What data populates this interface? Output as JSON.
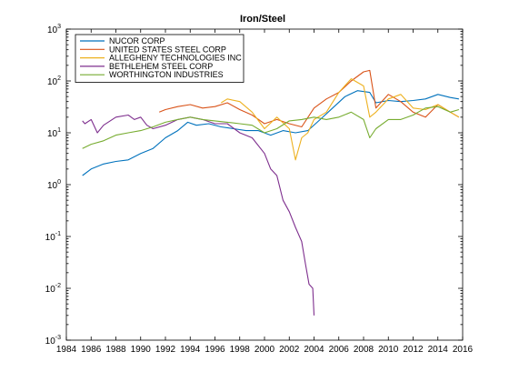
{
  "chart_data": {
    "type": "line",
    "title": "Iron/Steel",
    "xlabel": "",
    "ylabel": "",
    "xlim": [
      1984,
      2016
    ],
    "ylim": [
      0.001,
      1000
    ],
    "yscale": "log",
    "grid": false,
    "legend_position": "top-left",
    "x_ticks": [
      1984,
      1986,
      1988,
      1990,
      1992,
      1994,
      1996,
      1998,
      2000,
      2002,
      2004,
      2006,
      2008,
      2010,
      2012,
      2014,
      2016
    ],
    "y_ticks": [
      {
        "value": 0.001,
        "base": "10",
        "exp": "-3"
      },
      {
        "value": 0.01,
        "base": "10",
        "exp": "-2"
      },
      {
        "value": 0.1,
        "base": "10",
        "exp": "-1"
      },
      {
        "value": 1,
        "base": "10",
        "exp": "0"
      },
      {
        "value": 10,
        "base": "10",
        "exp": "1"
      },
      {
        "value": 100,
        "base": "10",
        "exp": "2"
      },
      {
        "value": 1000,
        "base": "10",
        "exp": "3"
      }
    ],
    "series": [
      {
        "name": "NUCOR CORP",
        "color": "#0072bd",
        "x": [
          1985.3,
          1986.0,
          1987.0,
          1988.0,
          1989.0,
          1990.0,
          1991.0,
          1992.0,
          1993.0,
          1993.8,
          1994.5,
          1995.5,
          1996.5,
          1997.5,
          1998.5,
          1999.5,
          2000.5,
          2001.5,
          2002.5,
          2003.5,
          2004.5,
          2005.5,
          2006.5,
          2007.5,
          2008.5,
          2009.0,
          2010.0,
          2011.0,
          2012.0,
          2013.0,
          2014.0,
          2015.0,
          2015.7
        ],
        "y": [
          1.5,
          2.0,
          2.5,
          2.8,
          3.0,
          4.0,
          5.0,
          8.0,
          11.0,
          16.0,
          14.0,
          15.0,
          13.0,
          12.0,
          11.0,
          11.0,
          9.0,
          11.0,
          10.0,
          11.0,
          18.0,
          30.0,
          50.0,
          65.0,
          60.0,
          38.0,
          42.0,
          40.0,
          42.0,
          45.0,
          55.0,
          48.0,
          45.0
        ]
      },
      {
        "name": "UNITED STATES STEEL CORP",
        "color": "#d95319",
        "x": [
          1991.5,
          1992.0,
          1993.0,
          1994.0,
          1995.0,
          1996.0,
          1997.0,
          1998.0,
          1999.0,
          2000.0,
          2001.0,
          2002.0,
          2003.0,
          2004.0,
          2005.0,
          2006.0,
          2007.0,
          2008.0,
          2008.5,
          2009.0,
          2010.0,
          2011.0,
          2012.0,
          2013.0,
          2014.0,
          2015.0,
          2015.7
        ],
        "y": [
          25.0,
          28.0,
          32.0,
          35.0,
          30.0,
          32.0,
          38.0,
          28.0,
          22.0,
          15.0,
          18.0,
          15.0,
          13.0,
          30.0,
          45.0,
          60.0,
          100.0,
          150.0,
          160.0,
          30.0,
          55.0,
          40.0,
          25.0,
          20.0,
          35.0,
          25.0,
          20.0
        ]
      },
      {
        "name": "ALLEGHENY TECHNOLOGIES INC",
        "color": "#edb120",
        "x": [
          1996.5,
          1997.0,
          1998.0,
          1999.0,
          2000.0,
          2001.0,
          2002.0,
          2002.5,
          2003.0,
          2003.5,
          2004.0,
          2005.0,
          2006.0,
          2007.0,
          2008.0,
          2008.5,
          2009.0,
          2010.0,
          2011.0,
          2012.0,
          2013.0,
          2014.0,
          2015.0,
          2015.7
        ],
        "y": [
          38.0,
          45.0,
          40.0,
          25.0,
          12.0,
          20.0,
          12.0,
          3.0,
          8.0,
          10.0,
          18.0,
          25.0,
          60.0,
          110.0,
          80.0,
          20.0,
          25.0,
          45.0,
          55.0,
          30.0,
          28.0,
          35.0,
          25.0,
          20.0
        ]
      },
      {
        "name": "BETHLEHEM STEEL CORP",
        "color": "#7e2f8e",
        "x": [
          1985.3,
          1985.5,
          1986.0,
          1986.5,
          1987.0,
          1988.0,
          1989.0,
          1989.5,
          1990.0,
          1990.5,
          1991.0,
          1992.0,
          1993.0,
          1994.0,
          1995.0,
          1996.0,
          1997.0,
          1998.0,
          1999.0,
          2000.0,
          2000.5,
          2001.0,
          2001.5,
          2002.0,
          2002.5,
          2003.0,
          2003.3,
          2003.6,
          2003.9,
          2004.0
        ],
        "y": [
          17.0,
          15.0,
          18.0,
          10.0,
          14.0,
          20.0,
          22.0,
          18.0,
          20.0,
          14.0,
          12.0,
          14.0,
          18.0,
          20.0,
          18.0,
          15.0,
          15.0,
          10.0,
          8.0,
          4.0,
          2.0,
          1.5,
          0.5,
          0.3,
          0.15,
          0.08,
          0.03,
          0.012,
          0.01,
          0.003
        ]
      },
      {
        "name": "WORTHINGTON INDUSTRIES",
        "color": "#77ac30",
        "x": [
          1985.3,
          1986.0,
          1987.0,
          1988.0,
          1989.0,
          1990.0,
          1991.0,
          1992.0,
          1993.0,
          1994.0,
          1995.0,
          1996.0,
          1997.0,
          1998.0,
          1999.0,
          2000.0,
          2001.0,
          2002.0,
          2003.0,
          2004.0,
          2005.0,
          2006.0,
          2007.0,
          2008.0,
          2008.5,
          2009.0,
          2010.0,
          2011.0,
          2012.0,
          2013.0,
          2014.0,
          2015.0,
          2015.7
        ],
        "y": [
          5.0,
          6.0,
          7.0,
          9.0,
          10.0,
          11.0,
          13.0,
          16.0,
          18.0,
          20.0,
          18.0,
          17.0,
          16.0,
          15.0,
          14.0,
          10.0,
          12.0,
          17.0,
          18.0,
          20.0,
          18.0,
          20.0,
          25.0,
          18.0,
          8.0,
          12.0,
          18.0,
          18.0,
          22.0,
          30.0,
          32.0,
          25.0,
          28.0
        ]
      }
    ]
  }
}
